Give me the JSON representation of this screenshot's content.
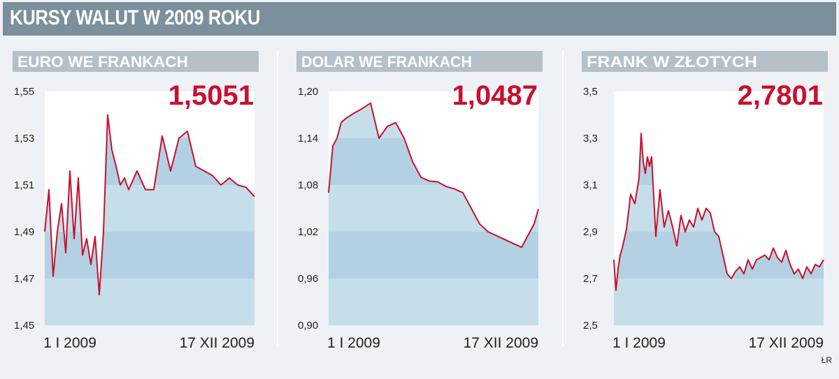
{
  "title": "KURSY WALUT W 2009 ROKU",
  "credit": "ŁR",
  "colors": {
    "line": "#c8102e",
    "fill": "#c5deea",
    "band": "#b3d1e2",
    "header": "#b5c0c8",
    "title_bg": "#7b8f9c"
  },
  "chart_data": [
    {
      "type": "area",
      "title": "EURO WE FRANKACH",
      "current_value": "1,5051",
      "y_ticks": [
        "1,55",
        "1,53",
        "1,51",
        "1,49",
        "1,47",
        "1,45"
      ],
      "ylim": [
        1.45,
        1.55
      ],
      "x_labels": [
        "1 I 2009",
        "17 XII 2009"
      ],
      "x": [
        0,
        2,
        4,
        6,
        8,
        10,
        12,
        14,
        16,
        18,
        20,
        22,
        24,
        26,
        28,
        30,
        32,
        34,
        36,
        38,
        40,
        44,
        48,
        52,
        56,
        60,
        64,
        68,
        72,
        76,
        80,
        84,
        88,
        92,
        96,
        100
      ],
      "values": [
        1.49,
        1.508,
        1.471,
        1.49,
        1.502,
        1.481,
        1.516,
        1.487,
        1.513,
        1.48,
        1.487,
        1.476,
        1.488,
        1.463,
        1.49,
        1.54,
        1.525,
        1.518,
        1.51,
        1.513,
        1.508,
        1.516,
        1.508,
        1.508,
        1.531,
        1.516,
        1.53,
        1.533,
        1.518,
        1.516,
        1.514,
        1.51,
        1.513,
        1.51,
        1.509,
        1.505
      ]
    },
    {
      "type": "area",
      "title": "DOLAR WE FRANKACH",
      "current_value": "1,0487",
      "y_ticks": [
        "1,20",
        "1,14",
        "1,08",
        "1,02",
        "0,96",
        "0,90"
      ],
      "ylim": [
        0.9,
        1.2
      ],
      "x_labels": [
        "1 I 2009",
        "17 XII 2009"
      ],
      "x": [
        0,
        2,
        4,
        6,
        8,
        12,
        16,
        20,
        24,
        28,
        32,
        36,
        40,
        44,
        48,
        52,
        56,
        60,
        64,
        68,
        72,
        76,
        80,
        84,
        88,
        92,
        96,
        98,
        100
      ],
      "values": [
        1.07,
        1.13,
        1.14,
        1.16,
        1.165,
        1.172,
        1.178,
        1.185,
        1.14,
        1.155,
        1.16,
        1.14,
        1.11,
        1.09,
        1.085,
        1.084,
        1.078,
        1.075,
        1.07,
        1.05,
        1.03,
        1.02,
        1.015,
        1.01,
        1.005,
        1.0,
        1.02,
        1.03,
        1.049
      ]
    },
    {
      "type": "area",
      "title": "FRANK W ZŁOTYCH",
      "current_value": "2,7801",
      "y_ticks": [
        "3,5",
        "3,3",
        "3,1",
        "2,9",
        "2,7",
        "2,5"
      ],
      "ylim": [
        2.5,
        3.5
      ],
      "x_labels": [
        "1 I 2009",
        "17 XII 2009"
      ],
      "x": [
        0,
        1,
        2,
        3,
        4,
        6,
        8,
        10,
        12,
        13,
        14,
        15,
        16,
        17,
        18,
        20,
        22,
        24,
        26,
        28,
        30,
        32,
        34,
        36,
        38,
        40,
        42,
        44,
        46,
        48,
        50,
        52,
        54,
        56,
        58,
        60,
        62,
        64,
        66,
        68,
        70,
        72,
        74,
        76,
        78,
        80,
        82,
        84,
        86,
        88,
        90,
        92,
        94,
        96,
        98,
        100
      ],
      "values": [
        2.78,
        2.65,
        2.74,
        2.8,
        2.83,
        2.91,
        3.06,
        3.02,
        3.13,
        3.32,
        3.2,
        3.15,
        3.22,
        3.18,
        3.22,
        2.88,
        3.08,
        2.92,
        2.99,
        2.92,
        2.84,
        2.97,
        2.9,
        2.95,
        2.92,
        3.0,
        2.95,
        3.0,
        2.98,
        2.9,
        2.88,
        2.8,
        2.72,
        2.7,
        2.73,
        2.75,
        2.72,
        2.78,
        2.74,
        2.78,
        2.79,
        2.8,
        2.78,
        2.83,
        2.79,
        2.77,
        2.82,
        2.76,
        2.72,
        2.74,
        2.7,
        2.75,
        2.72,
        2.76,
        2.75,
        2.78
      ]
    }
  ]
}
